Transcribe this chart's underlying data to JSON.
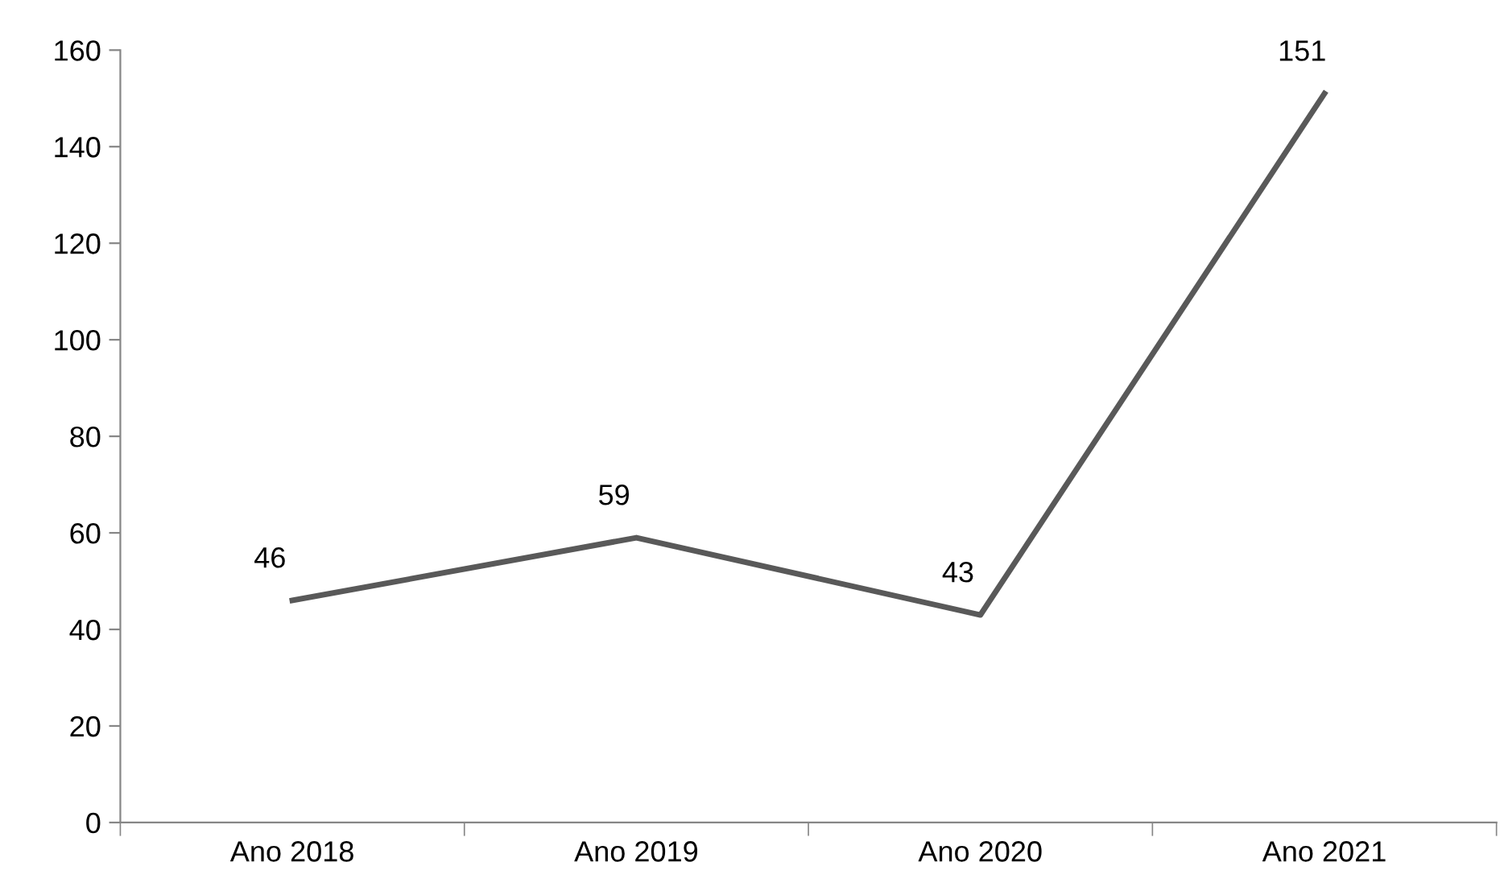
{
  "chart_data": {
    "type": "line",
    "categories": [
      "Ano 2018",
      "Ano 2019",
      "Ano 2020",
      "Ano 2021"
    ],
    "series": [
      {
        "color": "#595959",
        "values": [
          46,
          59,
          43,
          151
        ]
      }
    ],
    "ylim": [
      0,
      160
    ],
    "yticks": [
      0,
      20,
      40,
      60,
      80,
      100,
      120,
      140,
      160
    ],
    "data_labels": true,
    "grid": false,
    "legend": false,
    "marker": "none",
    "line_style": "solid"
  }
}
